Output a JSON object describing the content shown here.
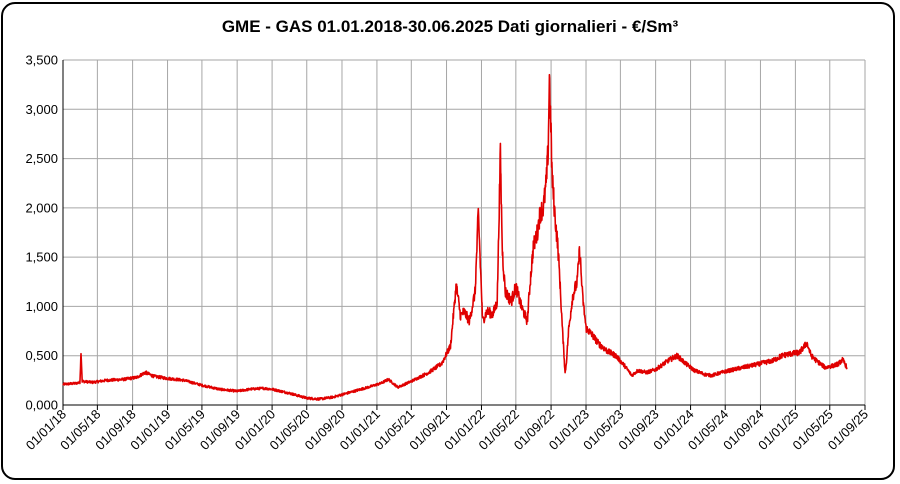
{
  "chart_data": {
    "type": "line",
    "title": "GME - GAS 01.01.2018-30.06.2025 Dati giornalieri - €/Sm³",
    "xlabel": "",
    "ylabel": "",
    "ylim": [
      0,
      3.5
    ],
    "xlim": [
      "2018-01-01",
      "2025-09-01"
    ],
    "grid": true,
    "y_ticks": [
      "0,000",
      "0,500",
      "1,000",
      "1,500",
      "2,000",
      "2,500",
      "3,000",
      "3,500"
    ],
    "x_ticks": [
      "01/01/18",
      "01/05/18",
      "01/09/18",
      "01/01/19",
      "01/05/19",
      "01/09/19",
      "01/01/20",
      "01/05/20",
      "01/09/20",
      "01/01/21",
      "01/05/21",
      "01/09/21",
      "01/01/22",
      "01/05/22",
      "01/09/22",
      "01/01/23",
      "01/05/23",
      "01/09/23",
      "01/01/24",
      "01/05/24",
      "01/09/24",
      "01/01/25",
      "01/05/25",
      "01/09/25"
    ],
    "series": [
      {
        "color": "#e00000",
        "points": [
          [
            "2018-01-01",
            0.21
          ],
          [
            "2018-02-15",
            0.22
          ],
          [
            "2018-03-01",
            0.23
          ],
          [
            "2018-03-05",
            0.55
          ],
          [
            "2018-03-09",
            0.24
          ],
          [
            "2018-04-15",
            0.23
          ],
          [
            "2018-06-01",
            0.25
          ],
          [
            "2018-08-01",
            0.26
          ],
          [
            "2018-09-15",
            0.28
          ],
          [
            "2018-10-15",
            0.33
          ],
          [
            "2018-11-15",
            0.29
          ],
          [
            "2019-01-01",
            0.27
          ],
          [
            "2019-03-01",
            0.25
          ],
          [
            "2019-05-01",
            0.2
          ],
          [
            "2019-07-01",
            0.16
          ],
          [
            "2019-09-01",
            0.14
          ],
          [
            "2019-10-15",
            0.16
          ],
          [
            "2019-12-01",
            0.17
          ],
          [
            "2020-01-01",
            0.16
          ],
          [
            "2020-03-01",
            0.12
          ],
          [
            "2020-05-01",
            0.07
          ],
          [
            "2020-06-15",
            0.06
          ],
          [
            "2020-08-01",
            0.08
          ],
          [
            "2020-10-01",
            0.13
          ],
          [
            "2020-12-01",
            0.18
          ],
          [
            "2021-01-15",
            0.22
          ],
          [
            "2021-02-10",
            0.26
          ],
          [
            "2021-03-15",
            0.18
          ],
          [
            "2021-05-01",
            0.24
          ],
          [
            "2021-07-01",
            0.33
          ],
          [
            "2021-08-15",
            0.42
          ],
          [
            "2021-09-15",
            0.6
          ],
          [
            "2021-10-05",
            1.22
          ],
          [
            "2021-10-20",
            0.9
          ],
          [
            "2021-11-01",
            0.95
          ],
          [
            "2021-11-20",
            0.85
          ],
          [
            "2021-12-10",
            1.15
          ],
          [
            "2021-12-21",
            1.95
          ],
          [
            "2022-01-05",
            0.85
          ],
          [
            "2022-01-20",
            0.95
          ],
          [
            "2022-02-10",
            0.92
          ],
          [
            "2022-02-25",
            1.05
          ],
          [
            "2022-03-08",
            2.55
          ],
          [
            "2022-03-15",
            1.55
          ],
          [
            "2022-03-25",
            1.15
          ],
          [
            "2022-04-15",
            1.05
          ],
          [
            "2022-05-01",
            1.2
          ],
          [
            "2022-05-20",
            1.0
          ],
          [
            "2022-06-10",
            0.85
          ],
          [
            "2022-06-20",
            1.25
          ],
          [
            "2022-07-01",
            1.6
          ],
          [
            "2022-07-15",
            1.75
          ],
          [
            "2022-07-25",
            1.95
          ],
          [
            "2022-08-05",
            2.0
          ],
          [
            "2022-08-15",
            2.25
          ],
          [
            "2022-08-22",
            2.6
          ],
          [
            "2022-08-26",
            3.35
          ],
          [
            "2022-09-05",
            2.3
          ],
          [
            "2022-09-15",
            1.9
          ],
          [
            "2022-09-25",
            1.6
          ],
          [
            "2022-10-01",
            1.3
          ],
          [
            "2022-10-10",
            0.8
          ],
          [
            "2022-10-20",
            0.32
          ],
          [
            "2022-10-25",
            0.45
          ],
          [
            "2022-11-01",
            0.75
          ],
          [
            "2022-11-15",
            1.1
          ],
          [
            "2022-12-01",
            1.25
          ],
          [
            "2022-12-10",
            1.58
          ],
          [
            "2022-12-20",
            1.1
          ],
          [
            "2023-01-01",
            0.78
          ],
          [
            "2023-01-20",
            0.72
          ],
          [
            "2023-02-15",
            0.62
          ],
          [
            "2023-03-15",
            0.55
          ],
          [
            "2023-04-15",
            0.5
          ],
          [
            "2023-05-15",
            0.4
          ],
          [
            "2023-06-10",
            0.3
          ],
          [
            "2023-07-01",
            0.35
          ],
          [
            "2023-08-01",
            0.33
          ],
          [
            "2023-09-01",
            0.36
          ],
          [
            "2023-10-15",
            0.45
          ],
          [
            "2023-11-15",
            0.5
          ],
          [
            "2023-12-15",
            0.42
          ],
          [
            "2024-01-15",
            0.35
          ],
          [
            "2024-02-20",
            0.31
          ],
          [
            "2024-03-15",
            0.3
          ],
          [
            "2024-05-01",
            0.34
          ],
          [
            "2024-07-01",
            0.38
          ],
          [
            "2024-09-01",
            0.42
          ],
          [
            "2024-10-15",
            0.45
          ],
          [
            "2024-11-15",
            0.5
          ],
          [
            "2024-12-15",
            0.52
          ],
          [
            "2025-01-15",
            0.53
          ],
          [
            "2025-02-10",
            0.63
          ],
          [
            "2025-02-25",
            0.5
          ],
          [
            "2025-03-15",
            0.45
          ],
          [
            "2025-04-15",
            0.38
          ],
          [
            "2025-05-15",
            0.4
          ],
          [
            "2025-06-01",
            0.42
          ],
          [
            "2025-06-15",
            0.46
          ],
          [
            "2025-06-30",
            0.38
          ]
        ]
      }
    ]
  }
}
